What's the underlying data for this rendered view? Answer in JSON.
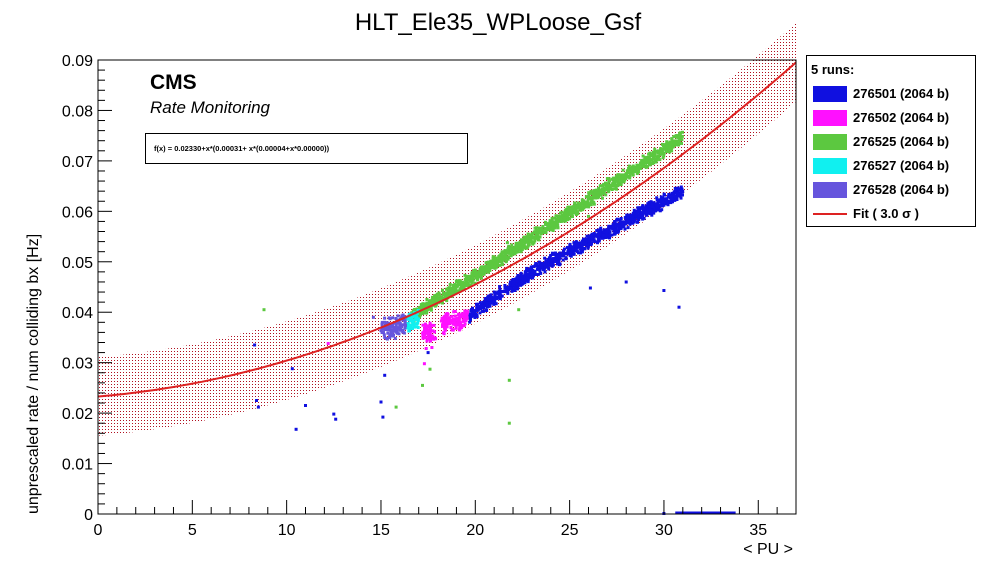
{
  "chart_data": {
    "type": "scatter",
    "title": "HLT_Ele35_WPLoose_Gsf",
    "xlabel": "< PU >",
    "ylabel": "unprescaled rate / num colliding bx [Hz]",
    "xlim": [
      0,
      37
    ],
    "ylim": [
      0,
      0.09
    ],
    "xticks": [
      "0",
      "5",
      "10",
      "15",
      "20",
      "25",
      "30",
      "35"
    ],
    "yticks": [
      "0",
      "0.01",
      "0.02",
      "0.03",
      "0.04",
      "0.05",
      "0.06",
      "0.07",
      "0.08",
      "0.09"
    ],
    "grid": false,
    "legend_position": "right",
    "legend_title": "5 runs:",
    "annotations": {
      "experiment": "CMS",
      "subtitle": "Rate Monitoring",
      "formula": "f(x) = 0.02330+x*(0.00031+ x*(0.00004+x*0.00000))"
    },
    "fit": {
      "label": "Fit ( 3.0 σ )",
      "color": "#dd2222",
      "coefficients": [
        0.0233,
        0.00031,
        4e-05
      ],
      "sigma_band": 0.0078
    },
    "series": [
      {
        "name": "276501 (2064 b)",
        "color": "#1010e0",
        "clusters": [
          {
            "x": [
              19.7,
              23.0
            ],
            "y_at_start": 0.0395,
            "slope": 0.00255,
            "spread": 0.0016
          },
          {
            "x": [
              23.0,
              31.0
            ],
            "y_at_start": 0.048,
            "slope": 0.002,
            "spread": 0.0016
          }
        ],
        "outliers": [
          [
            8.3,
            0.0335
          ],
          [
            8.4,
            0.0225
          ],
          [
            8.5,
            0.0212
          ],
          [
            10.3,
            0.0288
          ],
          [
            10.5,
            0.0168
          ],
          [
            11.0,
            0.0215
          ],
          [
            12.5,
            0.0198
          ],
          [
            12.6,
            0.0188
          ],
          [
            15.0,
            0.0222
          ],
          [
            15.1,
            0.0192
          ],
          [
            15.2,
            0.0275
          ],
          [
            17.5,
            0.032
          ],
          [
            21.0,
            0.044
          ],
          [
            22.0,
            0.046
          ],
          [
            26.1,
            0.0448
          ],
          [
            28.0,
            0.046
          ],
          [
            30.0,
            0.0443
          ],
          [
            30.8,
            0.041
          ],
          [
            30.0,
            0.0001
          ]
        ],
        "baseline": {
          "x": [
            30.6,
            33.8
          ],
          "y": 0.0
        }
      },
      {
        "name": "276502 (2064 b)",
        "color": "#ff10ff",
        "clusters": [
          {
            "x": [
              17.2,
              17.9
            ],
            "y_at_start": 0.036,
            "slope": 0.0,
            "spread": 0.0022
          },
          {
            "x": [
              18.2,
              19.6
            ],
            "y_at_start": 0.0375,
            "slope": 0.001,
            "spread": 0.0022
          }
        ],
        "outliers": [
          [
            12.2,
            0.0338
          ],
          [
            17.3,
            0.0298
          ],
          [
            17.4,
            0.0328
          ],
          [
            17.7,
            0.033
          ]
        ]
      },
      {
        "name": "276525 (2064 b)",
        "color": "#5cc840",
        "clusters": [
          {
            "x": [
              16.6,
              20.0
            ],
            "y_at_start": 0.0392,
            "slope": 0.00235,
            "spread": 0.0016
          },
          {
            "x": [
              20.0,
              31.0
            ],
            "y_at_start": 0.0472,
            "slope": 0.0025,
            "spread": 0.0016
          }
        ],
        "outliers": [
          [
            8.8,
            0.0405
          ],
          [
            15.8,
            0.0212
          ],
          [
            17.2,
            0.0255
          ],
          [
            17.6,
            0.0287
          ],
          [
            21.7,
            0.0538
          ],
          [
            21.8,
            0.0265
          ],
          [
            21.8,
            0.018
          ],
          [
            22.3,
            0.0405
          ],
          [
            26.0,
            0.059
          ],
          [
            27.0,
            0.0665
          ]
        ]
      },
      {
        "name": "276527 (2064 b)",
        "color": "#10f0f0",
        "clusters": [
          {
            "x": [
              16.3,
              17.0
            ],
            "y_at_start": 0.0375,
            "slope": 0.0015,
            "spread": 0.0022
          }
        ],
        "outliers": []
      },
      {
        "name": "276528 (2064 b)",
        "color": "#6655dd",
        "clusters": [
          {
            "x": [
              15.0,
              16.3
            ],
            "y_at_start": 0.0365,
            "slope": 0.0008,
            "spread": 0.0024
          }
        ],
        "outliers": [
          [
            14.6,
            0.039
          ]
        ]
      }
    ]
  }
}
